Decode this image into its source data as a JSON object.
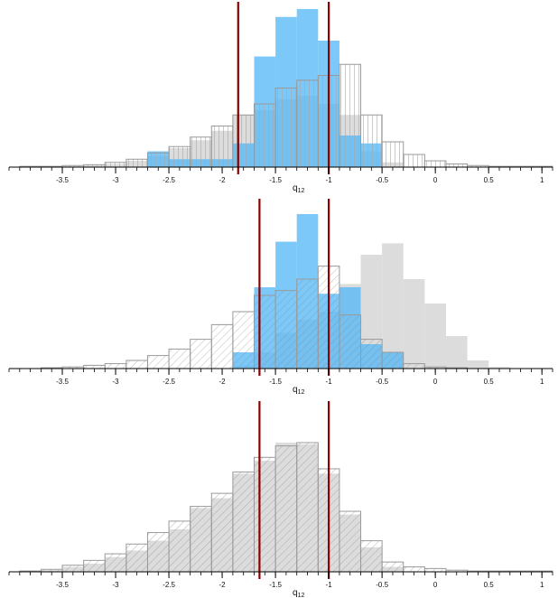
{
  "colors": {
    "gray_fill": "#dcdcdc",
    "blue_fill": "#56b9f7",
    "outline": "#9a9a9a",
    "hatch": "#8a8a8a",
    "vline": "#8b0000",
    "axis": "#000000"
  },
  "chart_data": [
    {
      "type": "bar",
      "xlabel": "q",
      "xlabel_sub": "12",
      "xlim": [
        -4,
        1.1
      ],
      "ylim": [
        0,
        100
      ],
      "ticks": [
        -3.5,
        -3,
        -2.5,
        -2,
        -1.5,
        -1,
        -0.5,
        0,
        0.5,
        1
      ],
      "tick_labels": [
        "-3.5",
        "-3",
        "-2.5",
        "-2",
        "-1.5",
        "-1",
        "-0.5",
        "0",
        "0.5",
        1
      ],
      "bin_edges": [
        -3.9,
        -3.7,
        -3.5,
        -3.3,
        -3.1,
        -2.9,
        -2.7,
        -2.5,
        -2.3,
        -2.1,
        -1.9,
        -1.7,
        -1.5,
        -1.3,
        -1.1,
        -0.9,
        -0.7,
        -0.5,
        -0.3,
        -0.1,
        0.1,
        0.3,
        0.5,
        0.7,
        0.9,
        1.1
      ],
      "series": [
        {
          "style": "gray-filled",
          "values": [
            0,
            0,
            0.5,
            1,
            2,
            4,
            7,
            12,
            17,
            23,
            33,
            36,
            43,
            45,
            40,
            33,
            10,
            3,
            0,
            0,
            0,
            0,
            0,
            0,
            0
          ]
        },
        {
          "style": "blue-filled",
          "values": [
            0,
            0,
            0,
            0,
            0,
            0,
            10,
            5,
            5,
            5,
            15,
            70,
            95,
            100,
            80,
            20,
            15,
            0,
            0,
            0,
            0,
            0,
            0,
            0,
            0
          ]
        },
        {
          "style": "white-vertical-hatch",
          "values": [
            0.5,
            0.5,
            1,
            1.5,
            3,
            5,
            9,
            13,
            19,
            26,
            33,
            40,
            50,
            55,
            58,
            65,
            33,
            16,
            8,
            4,
            2,
            1,
            0.5,
            0.5,
            0.5
          ]
        }
      ],
      "vlines": [
        -1.85,
        -1.0
      ]
    },
    {
      "type": "bar",
      "xlabel": "q",
      "xlabel_sub": "12",
      "xlim": [
        -4,
        1.1
      ],
      "ylim": [
        0,
        100
      ],
      "ticks": [
        -3.5,
        -3,
        -2.5,
        -2,
        -1.5,
        -1,
        -0.5,
        0,
        0.5,
        1
      ],
      "tick_labels": [
        "-3.5",
        "-3",
        "-2.5",
        "-2",
        "-1.5",
        "-1",
        "-0.5",
        "0",
        "0.5",
        1
      ],
      "bin_edges": [
        -3.9,
        -3.7,
        -3.5,
        -3.3,
        -3.1,
        -2.9,
        -2.7,
        -2.5,
        -2.3,
        -2.1,
        -1.9,
        -1.7,
        -1.5,
        -1.3,
        -1.1,
        -0.9,
        -0.7,
        -0.5,
        -0.3,
        -0.1,
        0.1,
        0.3,
        0.5,
        0.7,
        0.9,
        1.1
      ],
      "series": [
        {
          "style": "gray-filled",
          "values": [
            0,
            0,
            0,
            0,
            0,
            0,
            0,
            0,
            0,
            0,
            2,
            10,
            22,
            30,
            35,
            52,
            70,
            77,
            55,
            40,
            20,
            5,
            1,
            0,
            0
          ]
        },
        {
          "style": "blue-filled",
          "values": [
            0,
            0,
            0,
            0,
            0,
            0,
            0,
            0,
            0,
            0,
            10,
            50,
            78,
            95,
            46,
            50,
            15,
            10,
            0,
            0,
            0,
            0,
            0,
            0,
            0
          ]
        },
        {
          "style": "white-diagonal-hatch",
          "values": [
            0,
            0.5,
            1,
            2,
            3,
            5,
            8,
            12,
            18,
            27,
            35,
            45,
            48,
            55,
            63,
            33,
            18,
            10,
            3,
            1,
            0.5,
            0,
            0,
            0,
            0
          ]
        }
      ],
      "vlines": [
        -1.65,
        -1.0
      ]
    },
    {
      "type": "bar",
      "xlabel": "q",
      "xlabel_sub": "12",
      "xlim": [
        -4,
        1.1
      ],
      "ylim": [
        0,
        100
      ],
      "ticks": [
        -3.5,
        -3,
        -2.5,
        -2,
        -1.5,
        -1,
        -0.5,
        0,
        0.5,
        1
      ],
      "tick_labels": [
        "-3.5",
        "-3",
        "-2.5",
        "-2",
        "-1.5",
        "-1",
        "-0.5",
        "0",
        "0.5",
        1
      ],
      "bin_edges": [
        -3.9,
        -3.7,
        -3.5,
        -3.3,
        -3.1,
        -2.9,
        -2.7,
        -2.5,
        -2.3,
        -2.1,
        -1.9,
        -1.7,
        -1.5,
        -1.3,
        -1.1,
        -0.9,
        -0.7,
        -0.5,
        -0.3,
        -0.1,
        0.1,
        0.3,
        0.5,
        0.7,
        0.9,
        1.1
      ],
      "series": [
        {
          "style": "gray-filled",
          "values": [
            0,
            1,
            3,
            5,
            9,
            13,
            19,
            26,
            39,
            45,
            60,
            68,
            79,
            78,
            60,
            35,
            15,
            3,
            0,
            0,
            0,
            0,
            0,
            0,
            0
          ]
        },
        {
          "style": "gray-diagonal-hatch",
          "values": [
            0.5,
            1.5,
            4,
            7,
            11,
            17,
            24,
            31,
            40,
            48,
            61,
            70,
            77,
            79,
            63,
            37,
            19,
            6,
            3,
            2,
            1,
            0.5,
            0.5,
            0.5,
            0.5
          ]
        }
      ],
      "vlines": [
        -1.65,
        -1.0
      ]
    }
  ]
}
